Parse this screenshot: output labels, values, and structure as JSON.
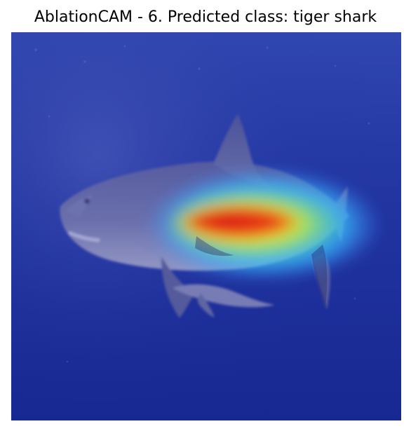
{
  "figure": {
    "title": "AblationCAM - 6. Predicted class: tiger shark",
    "image": {
      "subject": "tiger shark underwater",
      "overlay": "CAM heatmap (jet colormap) over the shark body"
    },
    "colors": {
      "water_top": "#2a3ca8",
      "water_bottom": "#1b2a94",
      "shark_body": "#6b6fa9",
      "heat_red": "#d91c16",
      "heat_yellow": "#f7e51a",
      "heat_green": "#57d477",
      "heat_cyan": "#2bd8ff",
      "heat_blue": "#3d86ff"
    }
  }
}
